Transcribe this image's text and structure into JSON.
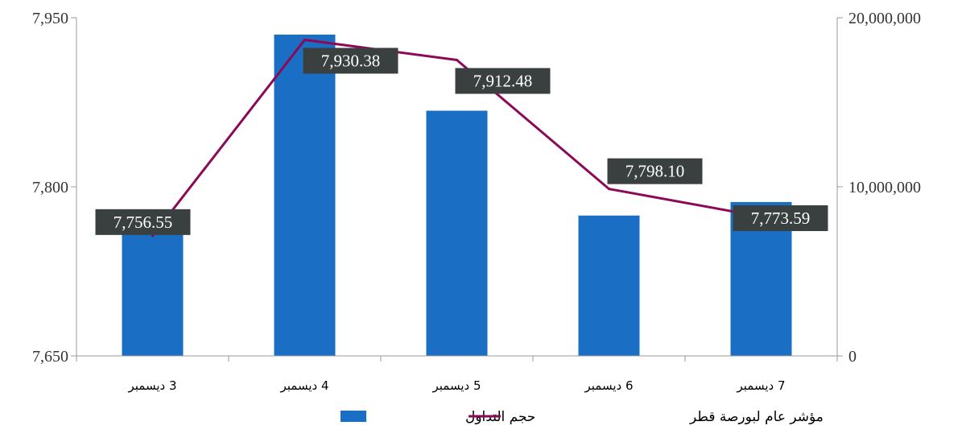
{
  "chart_data": {
    "type": "bar",
    "categories": [
      "3 ديسمبر",
      "4 ديسمبر",
      "5 ديسمبر",
      "6 ديسمبر",
      "7 ديسمبر"
    ],
    "series": [
      {
        "name": "حجم التداول",
        "type": "bar",
        "axis": "right",
        "color": "#1A6FC4",
        "values": [
          7400000,
          19000000,
          14500000,
          8300000,
          9100000
        ]
      },
      {
        "name": "مؤشر عام لبورصة قطر",
        "type": "line",
        "axis": "left",
        "color": "#8B0A57",
        "values": [
          7756.55,
          7930.38,
          7912.48,
          7798.1,
          7773.59
        ]
      }
    ],
    "data_labels": [
      "7,756.55",
      "7,930.38",
      "7,912.48",
      "7,798.10",
      "7,773.59"
    ],
    "left_axis": {
      "ylim": [
        7650,
        7950
      ],
      "ticks": [
        "7,650",
        "7,800",
        "7,950"
      ]
    },
    "right_axis": {
      "ylim": [
        0,
        20000000
      ],
      "ticks": [
        "0",
        "10,000,000",
        "20,000,000"
      ]
    },
    "legend": {
      "position": "bottom",
      "entries": [
        "حجم التداول",
        "مؤشر عام لبورصة قطر"
      ]
    },
    "grid": false,
    "title": "",
    "xlabel": "",
    "ylabel": ""
  }
}
